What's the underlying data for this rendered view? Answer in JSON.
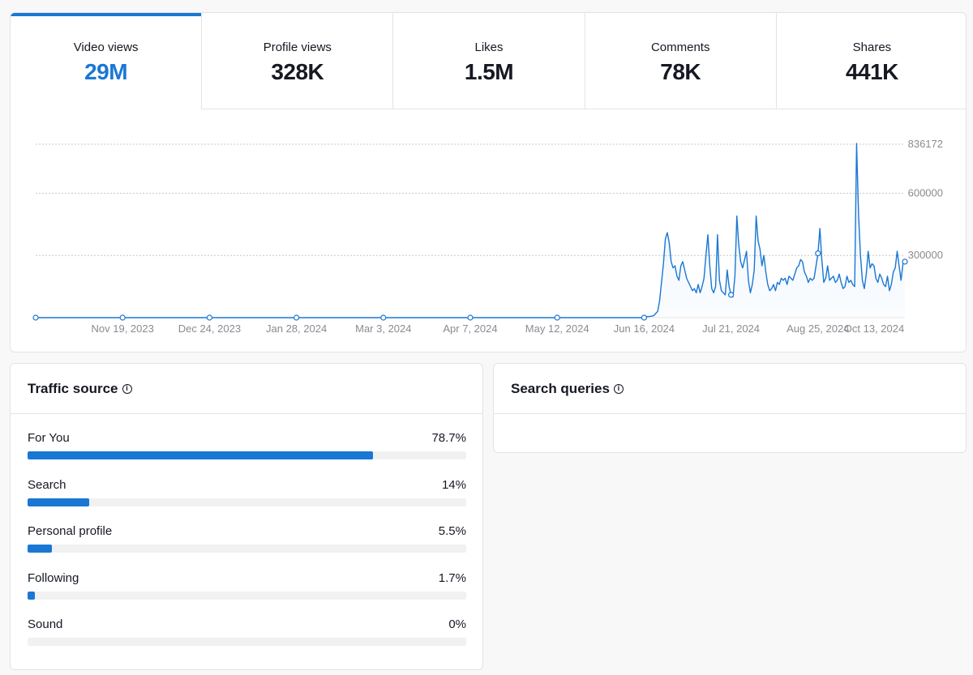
{
  "metrics": [
    {
      "label": "Video views",
      "value": "29M",
      "active": true
    },
    {
      "label": "Profile views",
      "value": "328K",
      "active": false
    },
    {
      "label": "Likes",
      "value": "1.5M",
      "active": false
    },
    {
      "label": "Comments",
      "value": "78K",
      "active": false
    },
    {
      "label": "Shares",
      "value": "441K",
      "active": false
    }
  ],
  "colors": {
    "accent": "#1a77d4",
    "grid": "#c8c8c8",
    "bar_track": "#f1f1f2"
  },
  "chart_data": {
    "type": "area",
    "series": [
      {
        "values": [
          0,
          0,
          0,
          0,
          0,
          0,
          0,
          0,
          0,
          0,
          0,
          0,
          0,
          0,
          0,
          0,
          0,
          0,
          0,
          0,
          0,
          0,
          0,
          0,
          0,
          0,
          0,
          0,
          0,
          0,
          0,
          0,
          0,
          0,
          0,
          0,
          0,
          0,
          0,
          0,
          0,
          0,
          0,
          0,
          0,
          0,
          0,
          0,
          0,
          0,
          0,
          0,
          0,
          0,
          0,
          0,
          0,
          0,
          0,
          0,
          0,
          0,
          0,
          0,
          0,
          0,
          0,
          0,
          0,
          0,
          0,
          0,
          0,
          0,
          0,
          0,
          0,
          0,
          0,
          0,
          0,
          0,
          0,
          0,
          0,
          0,
          0,
          0,
          0,
          0,
          0,
          0,
          0,
          0,
          0,
          0,
          0,
          0,
          0,
          0,
          0,
          0,
          0,
          0,
          0,
          0,
          0,
          0,
          0,
          0,
          0,
          0,
          0,
          0,
          0,
          0,
          0,
          0,
          0,
          0,
          0,
          0,
          0,
          0,
          0,
          0,
          0,
          0,
          0,
          0,
          0,
          0,
          0,
          0,
          0,
          0,
          0,
          0,
          0,
          0,
          0,
          0,
          0,
          0,
          0,
          0,
          0,
          0,
          0,
          0,
          0,
          0,
          0,
          0,
          0,
          0,
          0,
          0,
          0,
          0,
          0,
          0,
          0,
          0,
          0,
          0,
          0,
          0,
          0,
          0,
          0,
          0,
          0,
          0,
          0,
          0,
          0,
          0,
          0,
          0,
          0,
          0,
          0,
          0,
          0,
          0,
          0,
          0,
          0,
          0,
          0,
          0,
          0,
          0,
          0,
          0,
          0,
          0,
          0,
          0,
          0,
          0,
          0,
          0,
          0,
          0,
          0,
          0,
          0,
          0,
          0,
          0,
          0,
          0,
          0,
          0,
          0,
          0,
          0,
          0,
          0,
          0,
          0,
          0,
          0,
          0,
          0,
          0,
          0,
          0,
          0,
          0,
          0,
          0,
          0,
          0,
          0,
          0,
          0,
          0,
          0,
          0,
          0,
          0,
          0,
          0,
          0,
          0,
          0,
          0,
          0,
          0,
          0,
          0,
          0,
          0,
          0,
          0,
          0,
          0,
          0,
          0,
          0,
          0,
          0,
          0,
          0,
          0,
          0,
          0,
          0,
          0,
          0,
          0,
          0,
          0,
          0,
          0,
          0,
          0,
          0,
          0,
          0,
          0,
          0,
          0,
          0,
          0,
          0,
          0,
          0,
          0,
          0,
          0,
          0,
          0,
          0,
          0,
          0,
          0,
          0,
          0,
          0,
          0,
          0,
          0,
          0,
          0,
          0,
          0,
          0,
          0,
          0,
          0,
          0,
          0,
          5000,
          5000,
          6000,
          7000,
          10000,
          20000,
          30000,
          80000,
          170000,
          260000,
          380000,
          410000,
          360000,
          270000,
          240000,
          250000,
          200000,
          180000,
          250000,
          270000,
          230000,
          190000,
          170000,
          150000,
          130000,
          140000,
          120000,
          160000,
          120000,
          150000,
          190000,
          300000,
          400000,
          250000,
          140000,
          120000,
          150000,
          400000,
          180000,
          130000,
          120000,
          110000,
          230000,
          150000,
          110000,
          100000,
          200000,
          490000,
          350000,
          270000,
          240000,
          280000,
          320000,
          180000,
          120000,
          160000,
          230000,
          490000,
          370000,
          330000,
          250000,
          300000,
          220000,
          160000,
          130000,
          140000,
          160000,
          130000,
          170000,
          160000,
          190000,
          180000,
          190000,
          160000,
          200000,
          190000,
          180000,
          210000,
          240000,
          250000,
          280000,
          270000,
          220000,
          200000,
          170000,
          190000,
          180000,
          190000,
          250000,
          310000,
          430000,
          280000,
          170000,
          190000,
          250000,
          180000,
          190000,
          200000,
          170000,
          180000,
          210000,
          170000,
          140000,
          150000,
          200000,
          170000,
          180000,
          160000,
          150000,
          840000,
          500000,
          300000,
          180000,
          140000,
          210000,
          320000,
          240000,
          260000,
          250000,
          190000,
          170000,
          210000,
          190000,
          160000,
          150000,
          200000,
          130000,
          160000,
          220000,
          240000,
          320000,
          250000,
          180000,
          260000,
          270000
        ]
      }
    ],
    "x_tick_labels": [
      "Nov 19, 2023",
      "Dec 24, 2023",
      "Jan 28, 2024",
      "Mar 3, 2024",
      "Apr 7, 2024",
      "May 12, 2024",
      "Jun 16, 2024",
      "Jul 21, 2024",
      "Aug 25, 2024",
      "Oct 13, 2024"
    ],
    "y_tick_labels": [
      "836172",
      "600000",
      "300000"
    ],
    "y_ticks": [
      836172,
      600000,
      300000
    ],
    "ylim": [
      0,
      836172
    ],
    "grid": true
  },
  "traffic": {
    "title": "Traffic source",
    "items": [
      {
        "label": "For You",
        "value": "78.7%",
        "pct": 78.7
      },
      {
        "label": "Search",
        "value": "14%",
        "pct": 14
      },
      {
        "label": "Personal profile",
        "value": "5.5%",
        "pct": 5.5
      },
      {
        "label": "Following",
        "value": "1.7%",
        "pct": 1.7
      },
      {
        "label": "Sound",
        "value": "0%",
        "pct": 0
      }
    ]
  },
  "queries": {
    "title": "Search queries"
  }
}
